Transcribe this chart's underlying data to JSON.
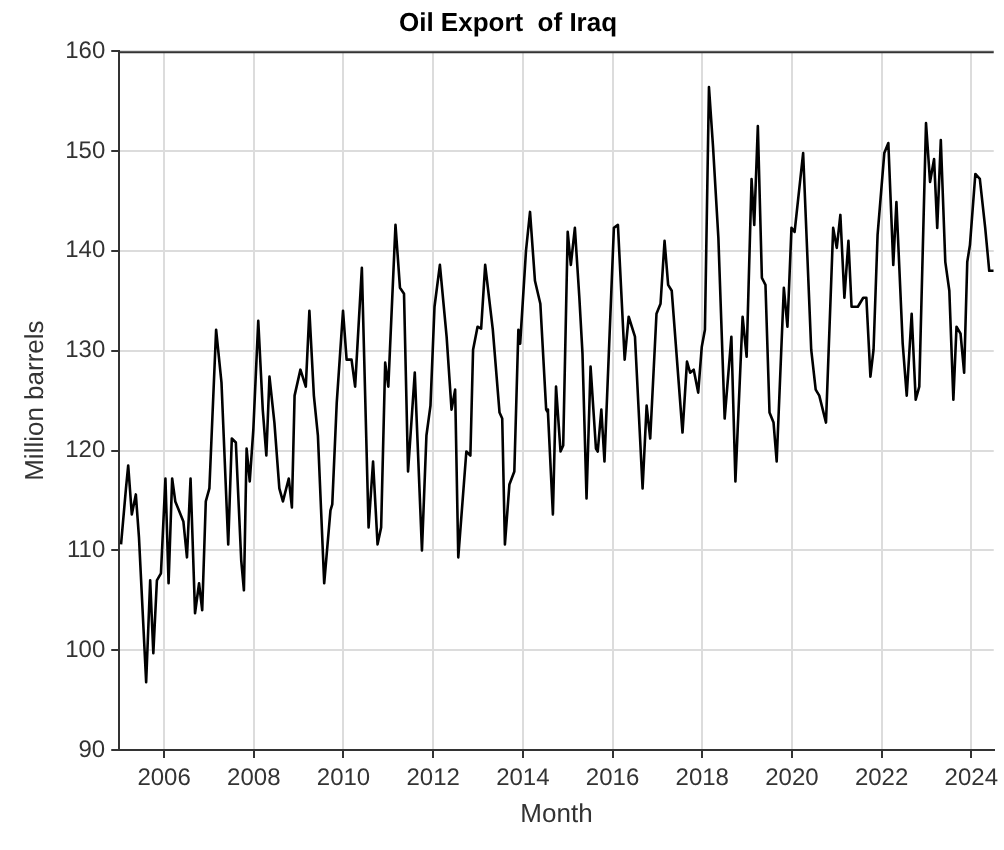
{
  "chart_data": {
    "type": "line",
    "title": "Oil Export  of Iraq",
    "xlabel": "Month",
    "ylabel": "Million barrels",
    "xlim": [
      2005,
      2024.5
    ],
    "xticks": [
      2006,
      2008,
      2010,
      2012,
      2014,
      2016,
      2018,
      2020,
      2022,
      2024
    ],
    "ylim": [
      90,
      160
    ],
    "yticks": [
      90,
      100,
      110,
      120,
      130,
      140,
      150,
      160
    ],
    "grid": true,
    "marker": "none",
    "line_style": "solid",
    "series": [
      {
        "color": "#000000",
        "x": [
          2005.04,
          2005.15,
          2005.2,
          2005.28,
          2005.37,
          2005.44,
          2005.6,
          2005.69,
          2005.76,
          2005.84,
          2005.93,
          2006.03,
          2006.1,
          2006.18,
          2006.25,
          2006.43,
          2006.51,
          2006.59,
          2006.69,
          2006.78,
          2006.85,
          2006.93,
          2007.01,
          2007.16,
          2007.28,
          2007.43,
          2007.51,
          2007.6,
          2007.72,
          2007.78,
          2007.84,
          2007.91,
          2007.99,
          2008.1,
          2008.2,
          2008.28,
          2008.35,
          2008.46,
          2008.57,
          2008.65,
          2008.78,
          2008.85,
          2008.91,
          2009.04,
          2009.16,
          2009.24,
          2009.34,
          2009.43,
          2009.57,
          2009.71,
          2009.75,
          2009.85,
          2009.99,
          2010.07,
          2010.18,
          2010.26,
          2010.41,
          2010.56,
          2010.66,
          2010.76,
          2010.84,
          2010.93,
          2011.0,
          2011.16,
          2011.26,
          2011.35,
          2011.44,
          2011.59,
          2011.75,
          2011.85,
          2011.94,
          2012.03,
          2012.15,
          2012.3,
          2012.41,
          2012.49,
          2012.56,
          2012.74,
          2012.83,
          2012.89,
          2012.99,
          2013.07,
          2013.16,
          2013.33,
          2013.48,
          2013.54,
          2013.6,
          2013.7,
          2013.81,
          2013.9,
          2013.94,
          2014.07,
          2014.16,
          2014.27,
          2014.39,
          2014.52,
          2014.56,
          2014.67,
          2014.74,
          2014.84,
          2014.9,
          2015.0,
          2015.07,
          2015.16,
          2015.26,
          2015.33,
          2015.42,
          2015.51,
          2015.63,
          2015.67,
          2015.75,
          2015.82,
          2016.03,
          2016.12,
          2016.27,
          2016.36,
          2016.5,
          2016.67,
          2016.76,
          2016.84,
          2016.98,
          2017.07,
          2017.16,
          2017.24,
          2017.32,
          2017.56,
          2017.66,
          2017.73,
          2017.81,
          2017.91,
          2017.99,
          2018.06,
          2018.15,
          2018.24,
          2018.36,
          2018.5,
          2018.65,
          2018.74,
          2018.9,
          2018.99,
          2019.1,
          2019.16,
          2019.24,
          2019.33,
          2019.41,
          2019.5,
          2019.59,
          2019.66,
          2019.82,
          2019.9,
          2019.99,
          2020.06,
          2020.25,
          2020.43,
          2020.53,
          2020.61,
          2020.76,
          2020.92,
          2021.0,
          2021.08,
          2021.17,
          2021.26,
          2021.33,
          2021.47,
          2021.59,
          2021.66,
          2021.75,
          2021.82,
          2021.91,
          2022.06,
          2022.15,
          2022.26,
          2022.33,
          2022.47,
          2022.56,
          2022.67,
          2022.76,
          2022.84,
          2022.99,
          2023.08,
          2023.17,
          2023.24,
          2023.32,
          2023.42,
          2023.51,
          2023.6,
          2023.67,
          2023.76,
          2023.84,
          2023.91,
          2023.97,
          2024.09,
          2024.19,
          2024.31,
          2024.4,
          2024.5
        ],
        "values": [
          110.6,
          116.2,
          118.5,
          113.6,
          115.6,
          111.3,
          96.8,
          107,
          99.7,
          107,
          107.7,
          117.2,
          106.7,
          117.2,
          114.9,
          112.9,
          109.3,
          117.2,
          103.7,
          106.7,
          104,
          114.9,
          116.2,
          132.1,
          126.8,
          110.6,
          121.2,
          120.8,
          109,
          106,
          120.2,
          116.9,
          122.1,
          133,
          124.1,
          119.5,
          127.4,
          122.8,
          116.2,
          114.9,
          117.2,
          114.3,
          125.5,
          128.1,
          126.4,
          134,
          125.5,
          121.5,
          106.7,
          114,
          114.6,
          124.8,
          134,
          129.1,
          129.1,
          126.4,
          138.3,
          112.3,
          118.9,
          110.6,
          112.3,
          128.8,
          126.4,
          142.6,
          136.3,
          135.7,
          117.9,
          127.8,
          110,
          121.5,
          124.5,
          134.4,
          138.6,
          131.4,
          124.1,
          126.1,
          109.3,
          119.9,
          119.5,
          130.1,
          132.4,
          132.2,
          138.6,
          132.1,
          123.8,
          123.2,
          110.6,
          116.6,
          117.9,
          132.1,
          130.7,
          140,
          143.9,
          137,
          134.7,
          124.1,
          123.8,
          113.6,
          126.4,
          119.9,
          120.5,
          141.9,
          138.6,
          142.3,
          135.3,
          129.7,
          115.2,
          128.4,
          120.2,
          119.9,
          124.1,
          118.9,
          142.3,
          142.6,
          129.1,
          133.4,
          131.4,
          116.2,
          124.5,
          121.2,
          133.7,
          134.7,
          141,
          136.6,
          136,
          121.8,
          128.9,
          127.8,
          128.1,
          125.8,
          130.4,
          132.1,
          156.4,
          150.5,
          141.3,
          123.2,
          131.4,
          116.9,
          133.4,
          129.4,
          147.2,
          142.6,
          152.5,
          137.3,
          136.6,
          123.8,
          122.8,
          118.9,
          136.3,
          132.4,
          142.3,
          141.9,
          149.8,
          130.1,
          126.1,
          125.5,
          122.8,
          142.3,
          140.3,
          143.6,
          135.3,
          141,
          134.4,
          134.4,
          135.3,
          135.3,
          127.4,
          130.1,
          141.6,
          149.8,
          150.8,
          138.6,
          144.9,
          130.7,
          125.5,
          133.7,
          125.1,
          126.4,
          152.8,
          146.9,
          149.2,
          142.3,
          151.1,
          138.9,
          136,
          125.1,
          132.4,
          131.7,
          127.8,
          138.9,
          140.6,
          147.7,
          147.2,
          142.3,
          138,
          138
        ]
      }
    ]
  }
}
